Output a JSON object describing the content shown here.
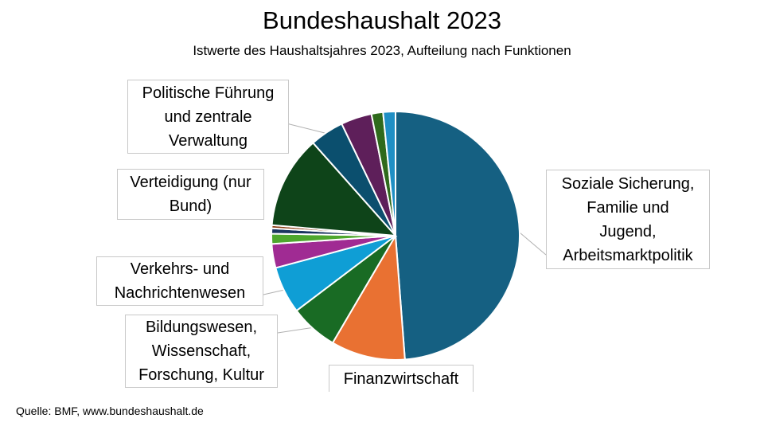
{
  "title": "Bundeshaushalt 2023",
  "subtitle": "Istwerte des Haushaltsjahres 2023, Aufteilung nach Funktionen",
  "source": "Quelle: BMF, www.bundeshaushalt.de",
  "chart_data": {
    "type": "pie",
    "title": "Bundeshaushalt 2023",
    "subtitle": "Istwerte des Haushaltsjahres 2023, Aufteilung nach Funktionen",
    "start": "12 o'clock, clockwise",
    "slices": [
      {
        "label": "Soziale Sicherung, Familie und Jugend, Arbeitsmarktpolitik",
        "value": 48.5,
        "color": "#156082"
      },
      {
        "label": "Finanzwirtschaft",
        "value": 9.6,
        "color": "#e97132"
      },
      {
        "label": "Bildungswesen, Wissenschaft, Forschung, Kultur",
        "value": 6.2,
        "color": "#196b24"
      },
      {
        "label": "Verkehrs- und Nachrichtenwesen",
        "value": 6.1,
        "color": "#0f9ed5"
      },
      {
        "label": "",
        "value": 3.1,
        "color": "#a02b93"
      },
      {
        "label": "",
        "value": 1.3,
        "color": "#4ea72e"
      },
      {
        "label": "",
        "value": 0.7,
        "color": "#1a3560"
      },
      {
        "label": "",
        "value": 0.4,
        "color": "#8a3e14"
      },
      {
        "label": "Verteidigung (nur Bund)",
        "value": 12.0,
        "color": "#0e4419"
      },
      {
        "label": "Politische Führung und zentrale Verwaltung",
        "value": 4.4,
        "color": "#0b4f6e"
      },
      {
        "label": "",
        "value": 4.0,
        "color": "#5e1f5a"
      },
      {
        "label": "",
        "value": 1.5,
        "color": "#2f6a1c"
      },
      {
        "label": "",
        "value": 1.6,
        "color": "#1f8fc4"
      }
    ]
  },
  "labels": {
    "soziale": "Soziale Sicherung,\nFamilie und\nJugend,\nArbeitsmarktpolitik",
    "finanz": "Finanzwirtschaft",
    "bildung": "Bildungswesen,\nWissenschaft,\nForschung, Kultur",
    "verkehr": "Verkehrs- und\nNachrichtenwesen",
    "verteidigung": "Verteidigung (nur\nBund)",
    "politik": "Politische Führung\nund zentrale\nVerwaltung"
  }
}
